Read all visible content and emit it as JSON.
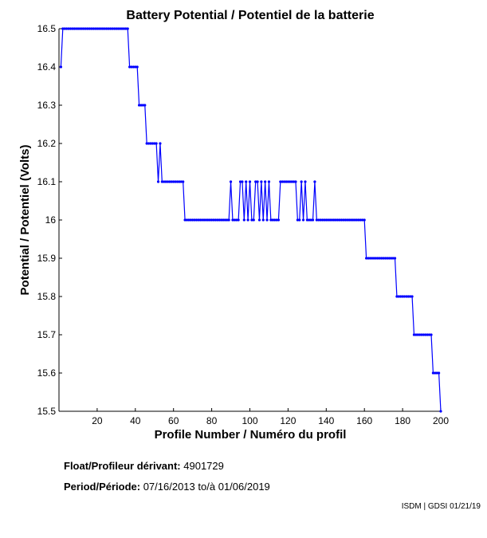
{
  "chart_data": {
    "type": "line",
    "title": "Battery Potential / Potentiel de la batterie",
    "xlabel": "Profile Number / Numéro du profil",
    "ylabel": "Potential / Potentiel (Volts)",
    "xlim": [
      0,
      200
    ],
    "ylim": [
      15.5,
      16.5
    ],
    "xticks": [
      20,
      40,
      60,
      80,
      100,
      120,
      140,
      160,
      180,
      200
    ],
    "yticks": [
      15.5,
      15.6,
      15.7,
      15.8,
      15.9,
      16,
      16.1,
      16.2,
      16.3,
      16.4,
      16.5
    ],
    "ytick_labels": [
      "15.5",
      "15.6",
      "15.7",
      "15.8",
      "15.9",
      "16",
      "16.1",
      "16.2",
      "16.3",
      "16.4",
      "16.5"
    ],
    "grid": false,
    "color": "#0000ff",
    "series": [
      {
        "name": "Battery Potential",
        "runs": [
          [
            1,
            1,
            16.4
          ],
          [
            2,
            36,
            16.5
          ],
          [
            37,
            41,
            16.4
          ],
          [
            42,
            45,
            16.3
          ],
          [
            46,
            51,
            16.2
          ],
          [
            52,
            52,
            16.1
          ],
          [
            53,
            53,
            16.2
          ],
          [
            54,
            65,
            16.1
          ],
          [
            66,
            89,
            16.0
          ],
          [
            90,
            90,
            16.1
          ],
          [
            91,
            94,
            16.0
          ],
          [
            95,
            96,
            16.1
          ],
          [
            97,
            97,
            16.0
          ],
          [
            98,
            98,
            16.1
          ],
          [
            99,
            99,
            16.0
          ],
          [
            100,
            100,
            16.1
          ],
          [
            101,
            102,
            16.0
          ],
          [
            103,
            104,
            16.1
          ],
          [
            105,
            105,
            16.0
          ],
          [
            106,
            106,
            16.1
          ],
          [
            107,
            107,
            16.0
          ],
          [
            108,
            108,
            16.1
          ],
          [
            109,
            109,
            16.0
          ],
          [
            110,
            110,
            16.1
          ],
          [
            111,
            115,
            16.0
          ],
          [
            116,
            124,
            16.1
          ],
          [
            125,
            126,
            16.0
          ],
          [
            127,
            127,
            16.1
          ],
          [
            128,
            128,
            16.0
          ],
          [
            129,
            129,
            16.1
          ],
          [
            130,
            133,
            16.0
          ],
          [
            134,
            134,
            16.1
          ],
          [
            135,
            160,
            16.0
          ],
          [
            161,
            176,
            15.9
          ],
          [
            177,
            185,
            15.8
          ],
          [
            186,
            195,
            15.7
          ],
          [
            196,
            199,
            15.6
          ],
          [
            200,
            200,
            15.5
          ]
        ]
      }
    ]
  },
  "footer": {
    "float_label": "Float/Profileur dérivant:",
    "float_id": "4901729",
    "period_label": "Period/Période:",
    "start_date": "07/16/2013",
    "to_label": "to/à",
    "end_date": "01/06/2019",
    "credit": "ISDM | GDSI 01/21/19"
  }
}
